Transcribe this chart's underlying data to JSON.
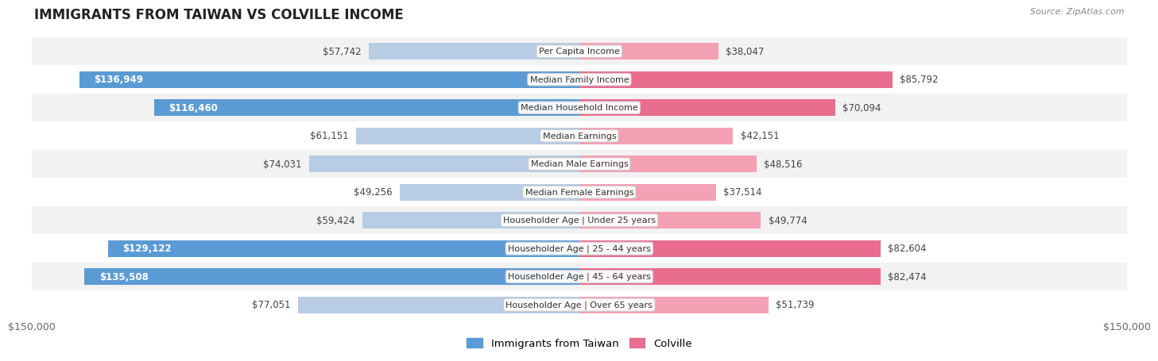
{
  "title": "IMMIGRANTS FROM TAIWAN VS COLVILLE INCOME",
  "source": "Source: ZipAtlas.com",
  "categories": [
    "Per Capita Income",
    "Median Family Income",
    "Median Household Income",
    "Median Earnings",
    "Median Male Earnings",
    "Median Female Earnings",
    "Householder Age | Under 25 years",
    "Householder Age | 25 - 44 years",
    "Householder Age | 45 - 64 years",
    "Householder Age | Over 65 years"
  ],
  "taiwan_values": [
    57742,
    136949,
    116460,
    61151,
    74031,
    49256,
    59424,
    129122,
    135508,
    77051
  ],
  "colville_values": [
    38047,
    85792,
    70094,
    42151,
    48516,
    37514,
    49774,
    82604,
    82474,
    51739
  ],
  "taiwan_labels": [
    "$57,742",
    "$136,949",
    "$116,460",
    "$61,151",
    "$74,031",
    "$49,256",
    "$59,424",
    "$129,122",
    "$135,508",
    "$77,051"
  ],
  "colville_labels": [
    "$38,047",
    "$85,792",
    "$70,094",
    "$42,151",
    "$48,516",
    "$37,514",
    "$49,774",
    "$82,604",
    "$82,474",
    "$51,739"
  ],
  "taiwan_dark_indices": [
    1,
    2,
    7,
    8
  ],
  "colville_dark_indices": [
    1,
    2,
    7,
    8
  ],
  "taiwan_color_light": "#b8cce4",
  "taiwan_color_dark": "#5b9bd5",
  "colville_color_light": "#f4a0b5",
  "colville_color_dark": "#e96d8f",
  "max_value": 150000,
  "xlabel_left": "$150,000",
  "xlabel_right": "$150,000",
  "legend_taiwan": "Immigrants from Taiwan",
  "legend_colville": "Colville",
  "row_colors": [
    "#f2f2f2",
    "#ffffff",
    "#f2f2f2",
    "#ffffff",
    "#f2f2f2",
    "#ffffff",
    "#f2f2f2",
    "#ffffff",
    "#f2f2f2",
    "#ffffff"
  ]
}
